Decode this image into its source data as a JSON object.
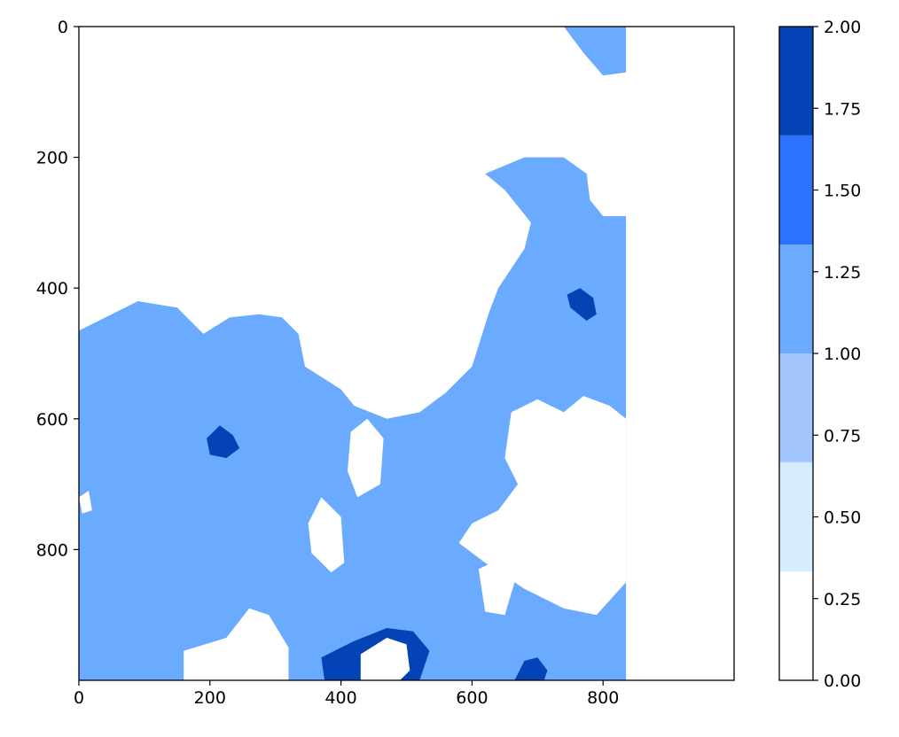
{
  "chart_data": {
    "type": "heatmap",
    "title": "",
    "xlabel": "",
    "ylabel": "",
    "xlim": [
      0,
      1000
    ],
    "ylim": [
      1000,
      0
    ],
    "x_ticks": [
      "0",
      "200",
      "400",
      "600",
      "800"
    ],
    "y_ticks": [
      "0",
      "200",
      "400",
      "600",
      "800"
    ],
    "grid": false,
    "legend": "colorbar-right",
    "colorbar": {
      "range": [
        0,
        2
      ],
      "ticks": [
        "0.00",
        "0.25",
        "0.50",
        "0.75",
        "1.00",
        "1.25",
        "1.50",
        "1.75",
        "2.00"
      ],
      "levels": [
        {
          "from": 0.0,
          "to": 0.333,
          "color": "#ffffff"
        },
        {
          "from": 0.333,
          "to": 0.667,
          "color": "#d6ecff"
        },
        {
          "from": 0.667,
          "to": 1.0,
          "color": "#a3c6ff"
        },
        {
          "from": 1.0,
          "to": 1.333,
          "color": "#6aabff"
        },
        {
          "from": 1.333,
          "to": 1.667,
          "color": "#2a72ff"
        },
        {
          "from": 1.667,
          "to": 2.0,
          "color": "#0343b6"
        }
      ]
    },
    "regions": [
      {
        "value": 1.0,
        "note": "cloud-band",
        "poly": [
          [
            0,
            465
          ],
          [
            90,
            420
          ],
          [
            150,
            430
          ],
          [
            190,
            470
          ],
          [
            230,
            445
          ],
          [
            275,
            440
          ],
          [
            310,
            445
          ],
          [
            335,
            470
          ],
          [
            345,
            520
          ],
          [
            400,
            555
          ],
          [
            420,
            580
          ],
          [
            470,
            600
          ],
          [
            520,
            590
          ],
          [
            560,
            560
          ],
          [
            600,
            520
          ],
          [
            625,
            440
          ],
          [
            640,
            400
          ],
          [
            680,
            340
          ],
          [
            690,
            300
          ],
          [
            650,
            250
          ],
          [
            620,
            225
          ],
          [
            680,
            200
          ],
          [
            740,
            200
          ],
          [
            775,
            225
          ],
          [
            780,
            265
          ],
          [
            800,
            290
          ],
          [
            835,
            290
          ],
          [
            835,
            1000
          ],
          [
            0,
            1000
          ]
        ]
      },
      {
        "value": 1.0,
        "note": "top-right",
        "poly": [
          [
            740,
            0
          ],
          [
            835,
            0
          ],
          [
            835,
            70
          ],
          [
            800,
            75
          ],
          [
            770,
            40
          ]
        ]
      },
      {
        "value": 0.0,
        "poly": [
          [
            660,
            590
          ],
          [
            700,
            570
          ],
          [
            740,
            590
          ],
          [
            770,
            565
          ],
          [
            810,
            580
          ],
          [
            835,
            600
          ],
          [
            835,
            850
          ],
          [
            790,
            900
          ],
          [
            740,
            890
          ],
          [
            680,
            860
          ],
          [
            620,
            820
          ],
          [
            580,
            790
          ],
          [
            600,
            760
          ],
          [
            640,
            740
          ],
          [
            670,
            700
          ],
          [
            650,
            660
          ]
        ]
      },
      {
        "value": 0.0,
        "poly": [
          [
            160,
            955
          ],
          [
            225,
            935
          ],
          [
            260,
            890
          ],
          [
            290,
            900
          ],
          [
            320,
            950
          ],
          [
            320,
            1000
          ],
          [
            160,
            1000
          ]
        ]
      },
      {
        "value": 0.0,
        "poly": [
          [
            350,
            760
          ],
          [
            370,
            720
          ],
          [
            400,
            750
          ],
          [
            405,
            820
          ],
          [
            385,
            835
          ],
          [
            355,
            805
          ]
        ]
      },
      {
        "value": 0.0,
        "poly": [
          [
            415,
            620
          ],
          [
            440,
            600
          ],
          [
            465,
            630
          ],
          [
            460,
            700
          ],
          [
            425,
            720
          ],
          [
            410,
            680
          ]
        ]
      },
      {
        "value": 0.0,
        "poly": [
          [
            0,
            720
          ],
          [
            15,
            710
          ],
          [
            20,
            740
          ],
          [
            5,
            745
          ]
        ]
      },
      {
        "value": 0.0,
        "poly": [
          [
            610,
            830
          ],
          [
            640,
            815
          ],
          [
            665,
            850
          ],
          [
            650,
            900
          ],
          [
            620,
            895
          ]
        ]
      },
      {
        "value": 2.0,
        "poly": [
          [
            370,
            965
          ],
          [
            420,
            940
          ],
          [
            470,
            920
          ],
          [
            510,
            925
          ],
          [
            535,
            955
          ],
          [
            520,
            1000
          ],
          [
            375,
            1000
          ]
        ]
      },
      {
        "value": 0.0,
        "poly": [
          [
            430,
            960
          ],
          [
            470,
            935
          ],
          [
            500,
            945
          ],
          [
            505,
            985
          ],
          [
            490,
            1000
          ],
          [
            430,
            1000
          ]
        ]
      },
      {
        "value": 2.0,
        "poly": [
          [
            195,
            630
          ],
          [
            215,
            610
          ],
          [
            235,
            625
          ],
          [
            245,
            645
          ],
          [
            225,
            660
          ],
          [
            200,
            655
          ]
        ]
      },
      {
        "value": 2.0,
        "poly": [
          [
            665,
            1000
          ],
          [
            680,
            970
          ],
          [
            700,
            965
          ],
          [
            715,
            985
          ],
          [
            710,
            1000
          ]
        ]
      },
      {
        "value": 2.0,
        "poly": [
          [
            745,
            410
          ],
          [
            765,
            400
          ],
          [
            785,
            415
          ],
          [
            790,
            440
          ],
          [
            775,
            450
          ],
          [
            750,
            430
          ]
        ]
      }
    ]
  }
}
